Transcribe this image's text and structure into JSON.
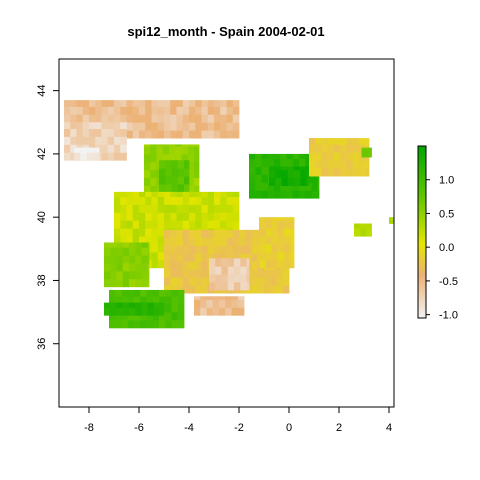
{
  "chart_data": {
    "type": "heatmap",
    "title": "spi12_month - Spain 2004-02-01",
    "xlabel": "",
    "ylabel": "",
    "xlim": [
      -9.2,
      4.2
    ],
    "ylim": [
      34,
      45
    ],
    "x_ticks": [
      -8,
      -6,
      -4,
      -2,
      0,
      2,
      4
    ],
    "x_tick_labels": [
      "-8",
      "-6",
      "-4",
      "-2",
      "0",
      "2",
      "4"
    ],
    "y_ticks": [
      36,
      38,
      40,
      42,
      44
    ],
    "y_tick_labels": [
      "36",
      "38",
      "40",
      "42",
      "44"
    ],
    "grid": false,
    "legend": {
      "placement": "right",
      "type": "colorbar",
      "range": [
        -1.05,
        1.5
      ],
      "ticks": [
        -1.0,
        -0.5,
        0.0,
        0.5,
        1.0
      ],
      "tick_labels": [
        "-1.0",
        "-0.5",
        "0.0",
        "0.5",
        "1.0"
      ],
      "colors": [
        "#F2F2F2",
        "#ECB176",
        "#E6E600",
        "#63C600",
        "#00A600"
      ]
    },
    "cell_size_deg": 0.25,
    "regions": [
      {
        "label": "north-coast",
        "lon": [
          -9.0,
          -2.0
        ],
        "lat": [
          42.5,
          43.7
        ],
        "value": -0.7
      },
      {
        "label": "galicia-pink",
        "lon": [
          -9.0,
          -6.5
        ],
        "lat": [
          41.8,
          43.0
        ],
        "value": -0.85
      },
      {
        "label": "galicia-white",
        "lon": [
          -8.6,
          -7.6
        ],
        "lat": [
          41.8,
          42.2
        ],
        "value": -1.0
      },
      {
        "label": "castilla-leon",
        "lon": [
          -5.8,
          -3.6
        ],
        "lat": [
          40.5,
          42.3
        ],
        "value": 0.45
      },
      {
        "label": "castilla-core",
        "lon": [
          -5.2,
          -4.0
        ],
        "lat": [
          40.8,
          41.8
        ],
        "value": 0.8
      },
      {
        "label": "ebro-green",
        "lon": [
          -1.6,
          1.2
        ],
        "lat": [
          40.6,
          42.0
        ],
        "value": 1.15
      },
      {
        "label": "ebro-core",
        "lon": [
          -0.8,
          0.8
        ],
        "lat": [
          41.0,
          41.6
        ],
        "value": 1.35
      },
      {
        "label": "catalonia-orange",
        "lon": [
          0.8,
          3.2
        ],
        "lat": [
          41.3,
          42.5
        ],
        "value": -0.3
      },
      {
        "label": "catalonia-tip",
        "lon": [
          2.9,
          3.3
        ],
        "lat": [
          41.9,
          42.2
        ],
        "value": 0.7
      },
      {
        "label": "center-yellow",
        "lon": [
          -7.0,
          -2.0
        ],
        "lat": [
          38.4,
          40.8
        ],
        "value": 0.15
      },
      {
        "label": "center-south-orange",
        "lon": [
          -5.0,
          0.0
        ],
        "lat": [
          37.6,
          39.6
        ],
        "value": -0.35
      },
      {
        "label": "la-mancha-pink",
        "lon": [
          -3.2,
          -1.6
        ],
        "lat": [
          37.7,
          38.7
        ],
        "value": -0.8
      },
      {
        "label": "murcia-pink",
        "lon": [
          -3.8,
          -1.8
        ],
        "lat": [
          36.9,
          37.5
        ],
        "value": -0.7
      },
      {
        "label": "extremadura-green",
        "lon": [
          -7.4,
          -5.6
        ],
        "lat": [
          37.8,
          39.2
        ],
        "value": 0.5
      },
      {
        "label": "andalusia-green",
        "lon": [
          -7.2,
          -4.2
        ],
        "lat": [
          36.5,
          37.7
        ],
        "value": 0.9
      },
      {
        "label": "andalusia-dark",
        "lon": [
          -7.4,
          -5.0
        ],
        "lat": [
          36.9,
          37.3
        ],
        "value": 1.2
      },
      {
        "label": "valencia-orange",
        "lon": [
          -1.2,
          0.2
        ],
        "lat": [
          38.4,
          40.0
        ],
        "value": -0.25
      },
      {
        "label": "balearic",
        "lon": [
          2.6,
          3.3
        ],
        "lat": [
          39.4,
          39.8
        ],
        "value": 0.3
      },
      {
        "label": "menorca",
        "lon": [
          4.0,
          4.2
        ],
        "lat": [
          39.8,
          40.0
        ],
        "value": 0.4
      }
    ]
  }
}
